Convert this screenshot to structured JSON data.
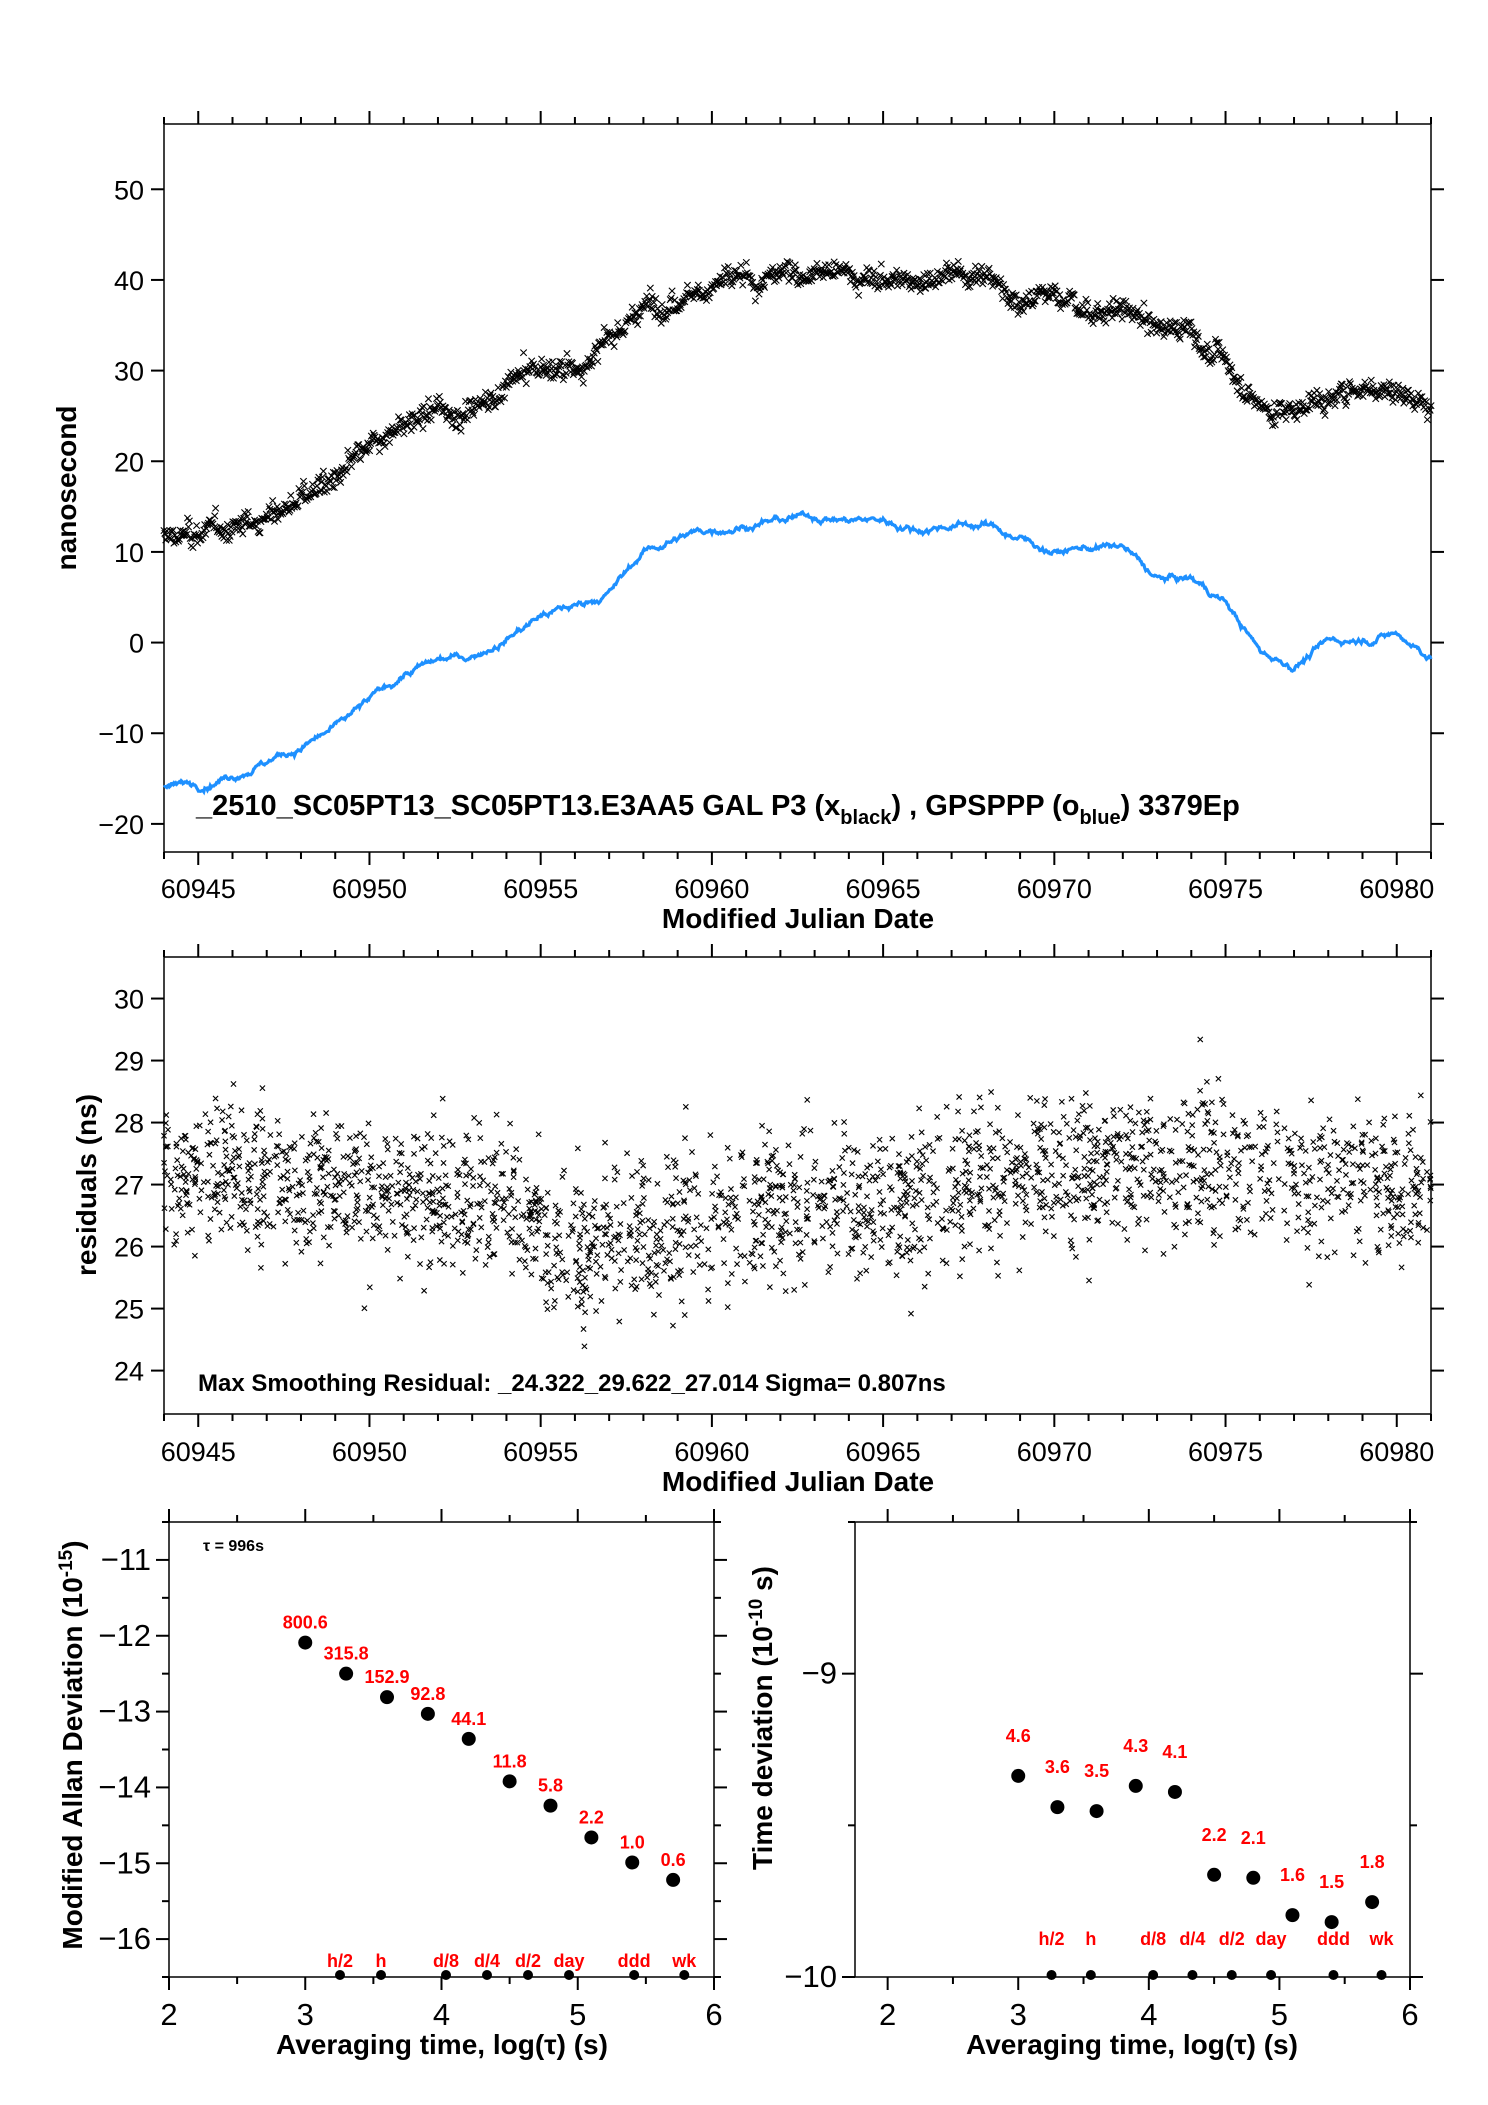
{
  "chart_data": [
    {
      "type": "scatter",
      "xlabel": "Modified Julian Date",
      "ylabel": "nanosecond",
      "xlim": [
        60944,
        60981
      ],
      "ylim": [
        -23.1,
        57.2
      ],
      "xticks": [
        60945,
        60950,
        60955,
        60960,
        60965,
        60970,
        60975,
        60980
      ],
      "yticks": [
        -20,
        -10,
        0,
        10,
        20,
        30,
        40,
        50
      ],
      "caption": {
        "main": "_2510_SC05PT13_SC05PT13.E3AA5    GAL P3 (x",
        "sub1": "black",
        "mid": ") ,  GPSPPP (o",
        "sub2": "blue",
        "end": ")  3379Ep"
      },
      "series": [
        {
          "name": "GAL P3",
          "marker": "x",
          "color": "#000000",
          "x": [
            60944,
            60945,
            60946,
            60947,
            60948,
            60949,
            60950,
            60951,
            60952,
            60953,
            60954,
            60955,
            60956,
            60957,
            60958,
            60959,
            60960,
            60961,
            60962,
            60963,
            60964,
            60965,
            60966,
            60967,
            60968,
            60969,
            60970,
            60971,
            60972,
            60973,
            60974,
            60975,
            60976,
            60977,
            60978,
            60979,
            60980,
            60981
          ],
          "y": [
            11.5,
            12,
            12.5,
            14,
            16,
            18,
            21,
            24,
            25,
            26,
            28,
            30.5,
            30,
            33,
            37,
            38.5,
            39.5,
            40,
            40.5,
            41,
            40.5,
            40,
            40,
            40.5,
            41,
            38,
            38.5,
            36.5,
            37,
            34.5,
            34.5,
            31,
            26,
            25.5,
            27.5,
            28,
            28,
            26
          ]
        },
        {
          "name": "GPSPPP",
          "marker": "o",
          "color": "#1e90ff",
          "x": [
            60944,
            60945,
            60946,
            60947,
            60948,
            60949,
            60950,
            60951,
            60952,
            60953,
            60954,
            60955,
            60956,
            60957,
            60958,
            60959,
            60960,
            60961,
            60962,
            60963,
            60964,
            60965,
            60966,
            60967,
            60968,
            60969,
            60970,
            60971,
            60972,
            60973,
            60974,
            60975,
            60976,
            60977,
            60978,
            60979,
            60980,
            60981
          ],
          "y": [
            -16,
            -15.5,
            -14.5,
            -13,
            -11.5,
            -9.5,
            -6.5,
            -3.5,
            -2,
            -1.5,
            0.5,
            3,
            4,
            5.5,
            10,
            11.5,
            12.5,
            13,
            13.5,
            14,
            13.5,
            13.5,
            12.5,
            13,
            13,
            11.5,
            10,
            10.5,
            10.5,
            7,
            7,
            4.5,
            -1,
            -2.5,
            0,
            0.5,
            1,
            -1.5
          ]
        }
      ]
    },
    {
      "type": "scatter",
      "xlabel": "Modified Julian Date",
      "ylabel": "residuals (ns)",
      "xlim": [
        60944,
        60981
      ],
      "ylim": [
        23.3,
        30.67
      ],
      "xticks": [
        60945,
        60950,
        60955,
        60960,
        60965,
        60970,
        60975,
        60980
      ],
      "yticks": [
        24,
        25,
        26,
        27,
        28,
        29,
        30
      ],
      "annotation": "Max Smoothing Residual: _24.322_29.622_27.014  Sigma= 0.807ns",
      "series": [
        {
          "marker": "x",
          "color": "#000000",
          "x": [
            60944,
            60946,
            60948,
            60950,
            60952,
            60954,
            60955,
            60956,
            60958,
            60960,
            60962,
            60964,
            60966,
            60968,
            60970,
            60972,
            60974,
            60976,
            60978,
            60980,
            60981
          ],
          "y": [
            27.3,
            27.1,
            27.0,
            26.9,
            26.8,
            26.6,
            26.2,
            26.0,
            26.2,
            26.6,
            26.7,
            26.7,
            26.8,
            27.1,
            27.2,
            27.3,
            27.3,
            27.2,
            27.2,
            27.0,
            27.0
          ],
          "min": 24.322,
          "max": 29.622,
          "mean": 27.014,
          "sigma": 0.807
        }
      ]
    },
    {
      "type": "scatter",
      "xlabel": "Averaging time, log(τ) (s)",
      "ylabel": "Modified Allan Deviation (10",
      "ylabel_sup": "-15",
      "ylabel_end": ")",
      "xlim": [
        2,
        6
      ],
      "ylim": [
        -16.5,
        -10.5
      ],
      "xticks": [
        2,
        3,
        4,
        5,
        6
      ],
      "yticks": [
        -16,
        -15,
        -14,
        -13,
        -12,
        -11
      ],
      "tau_note": "τ = 996s",
      "points": {
        "x": [
          3.0,
          3.3,
          3.6,
          3.9,
          4.2,
          4.5,
          4.8,
          5.1,
          5.4,
          5.7
        ],
        "y": [
          -12.09,
          -12.5,
          -12.81,
          -13.03,
          -13.36,
          -13.92,
          -14.24,
          -14.66,
          -14.99,
          -15.22
        ],
        "labels": [
          "800.6",
          "315.8",
          "152.9",
          "92.8",
          "44.1",
          "11.8",
          "5.8",
          "2.2",
          "1.0",
          "0.6"
        ]
      },
      "markers": {
        "x": [
          3.255,
          3.556,
          4.033,
          4.334,
          4.635,
          4.936,
          5.414,
          5.782
        ],
        "labels": [
          "h/2",
          "h",
          "d/8",
          "d/4",
          "d/2",
          "day",
          "ddd",
          "wk"
        ]
      }
    },
    {
      "type": "scatter",
      "xlabel": "Averaging time, log(τ) (s)",
      "ylabel": "Time deviation (10",
      "ylabel_sup": "-10",
      "ylabel_end": " s)",
      "xlim": [
        1.75,
        6
      ],
      "ylim": [
        -10,
        -8.5
      ],
      "xticks": [
        2,
        3,
        4,
        5,
        6
      ],
      "yticks": [
        -10,
        -9
      ],
      "points": {
        "x": [
          3.0,
          3.3,
          3.6,
          3.9,
          4.2,
          4.5,
          4.8,
          5.1,
          5.4,
          5.71
        ],
        "y": [
          -9.337,
          -9.44,
          -9.453,
          -9.37,
          -9.39,
          -9.663,
          -9.673,
          -9.796,
          -9.819,
          -9.753
        ],
        "labels": [
          "4.6",
          "3.6",
          "3.5",
          "4.3",
          "4.1",
          "2.2",
          "2.1",
          "1.6",
          "1.5",
          "1.8"
        ]
      },
      "markers": {
        "x": [
          3.255,
          3.556,
          4.033,
          4.334,
          4.635,
          4.936,
          5.414,
          5.782
        ],
        "labels": [
          "h/2",
          "h",
          "d/8",
          "d/4",
          "d/2",
          "day",
          "ddd",
          "wk"
        ]
      }
    }
  ]
}
